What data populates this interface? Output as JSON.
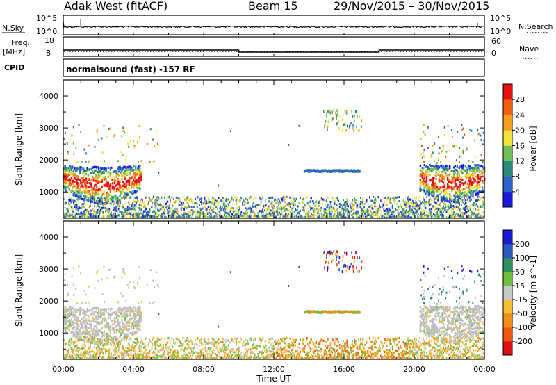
{
  "header": {
    "station": "Adak West (fitACF)",
    "beam": "Beam 15",
    "dates": "29/Nov/2015 – 30/Nov/2015"
  },
  "strips": {
    "nsky_label": "N.Sky",
    "nsky_ticks": [
      "10^5",
      "10^0"
    ],
    "nsearch_label": "N.Search",
    "nsearch_ticks": [
      "10^5",
      "10^0"
    ],
    "freq_label": "Freq.",
    "freq_unit": "[MHz]",
    "freq_ticks": [
      "18",
      "8"
    ],
    "nave_label": "Nave",
    "nave_ticks": [
      "60",
      "0"
    ],
    "cpid_label": "CPID",
    "cpid_text": "normalsound (fast) -157 RF",
    "freq_profile": [
      {
        "t": 0.0,
        "v": 12
      },
      {
        "t": 10.0,
        "v": 12
      },
      {
        "t": 10.0,
        "v": 10.5
      },
      {
        "t": 18.0,
        "v": 10.5
      },
      {
        "t": 18.0,
        "v": 12
      },
      {
        "t": 24.0,
        "v": 12
      }
    ]
  },
  "colors": {
    "power": [
      "#1a1adc",
      "#2f62c8",
      "#2e8a78",
      "#6fc05a",
      "#f2e23a",
      "#f7a020",
      "#f06010",
      "#e81010"
    ],
    "velocity": [
      "#e01010",
      "#f05810",
      "#f0901c",
      "#f5c032",
      "#c8c8c8",
      "#70c040",
      "#2e9060",
      "#2a5ac0",
      "#1a1ad0"
    ],
    "ground_scatter": "#bebebe",
    "axis": "#000000",
    "background": "#ffffff"
  },
  "chart_data": [
    {
      "type": "heatmap",
      "title": "",
      "xlabel": "Time UT",
      "ylabel": "Slant Range [km]",
      "xlim": [
        0,
        24
      ],
      "ylim": [
        180,
        4500
      ],
      "x_ticks": [
        "00:00",
        "04:00",
        "08:00",
        "12:00",
        "16:00",
        "20:00",
        "00:00"
      ],
      "y_ticks": [
        "1000",
        "2000",
        "3000",
        "4000"
      ],
      "colorbar": {
        "label": "Power [dB]",
        "ticks": [
          "4",
          "8",
          "12",
          "16",
          "20",
          "24",
          "28"
        ],
        "range": [
          0,
          30
        ]
      },
      "regions": [
        {
          "name": "evening scatter",
          "t": [
            0,
            5.5
          ],
          "range_km": [
            800,
            2700
          ],
          "peak_db": 29
        },
        {
          "name": "midday band",
          "t": [
            13.7,
            16.9
          ],
          "range_km": [
            1600,
            1700
          ],
          "peak_db": 8
        },
        {
          "name": "high range patches",
          "t": [
            14.8,
            17.0
          ],
          "range_km": [
            2900,
            3600
          ],
          "peak_db": 18
        },
        {
          "name": "morning scatter",
          "t": [
            20.2,
            24
          ],
          "range_km": [
            800,
            3400
          ],
          "peak_db": 29
        },
        {
          "name": "near range",
          "t": [
            0,
            24
          ],
          "range_km": [
            180,
            400
          ],
          "peak_db": 16
        }
      ]
    },
    {
      "type": "heatmap",
      "title": "",
      "xlabel": "Time UT",
      "ylabel": "Slant Range [km]",
      "xlim": [
        0,
        24
      ],
      "ylim": [
        180,
        4500
      ],
      "x_ticks": [
        "00:00",
        "04:00",
        "08:00",
        "12:00",
        "16:00",
        "20:00",
        "00:00"
      ],
      "y_ticks": [
        "1000",
        "2000",
        "3000",
        "4000"
      ],
      "colorbar": {
        "label": "Velocity [m s^-1]",
        "ticks": [
          "200",
          "100",
          "50",
          "15",
          "-15",
          "-50",
          "-100",
          "-200"
        ],
        "range": [
          -250,
          250
        ]
      },
      "regions": [
        {
          "name": "evening ground scatter",
          "t": [
            0,
            5.5
          ],
          "range_km": [
            800,
            2700
          ],
          "velocity": 0
        },
        {
          "name": "midday band",
          "t": [
            13.7,
            16.9
          ],
          "range_km": [
            1600,
            1700
          ],
          "velocity": -30
        },
        {
          "name": "morning ground scatter",
          "t": [
            20.2,
            24
          ],
          "range_km": [
            800,
            2400
          ],
          "velocity": 0
        },
        {
          "name": "high range flow",
          "t": [
            20.3,
            24
          ],
          "range_km": [
            2900,
            3400
          ],
          "velocity": 200
        }
      ]
    }
  ]
}
